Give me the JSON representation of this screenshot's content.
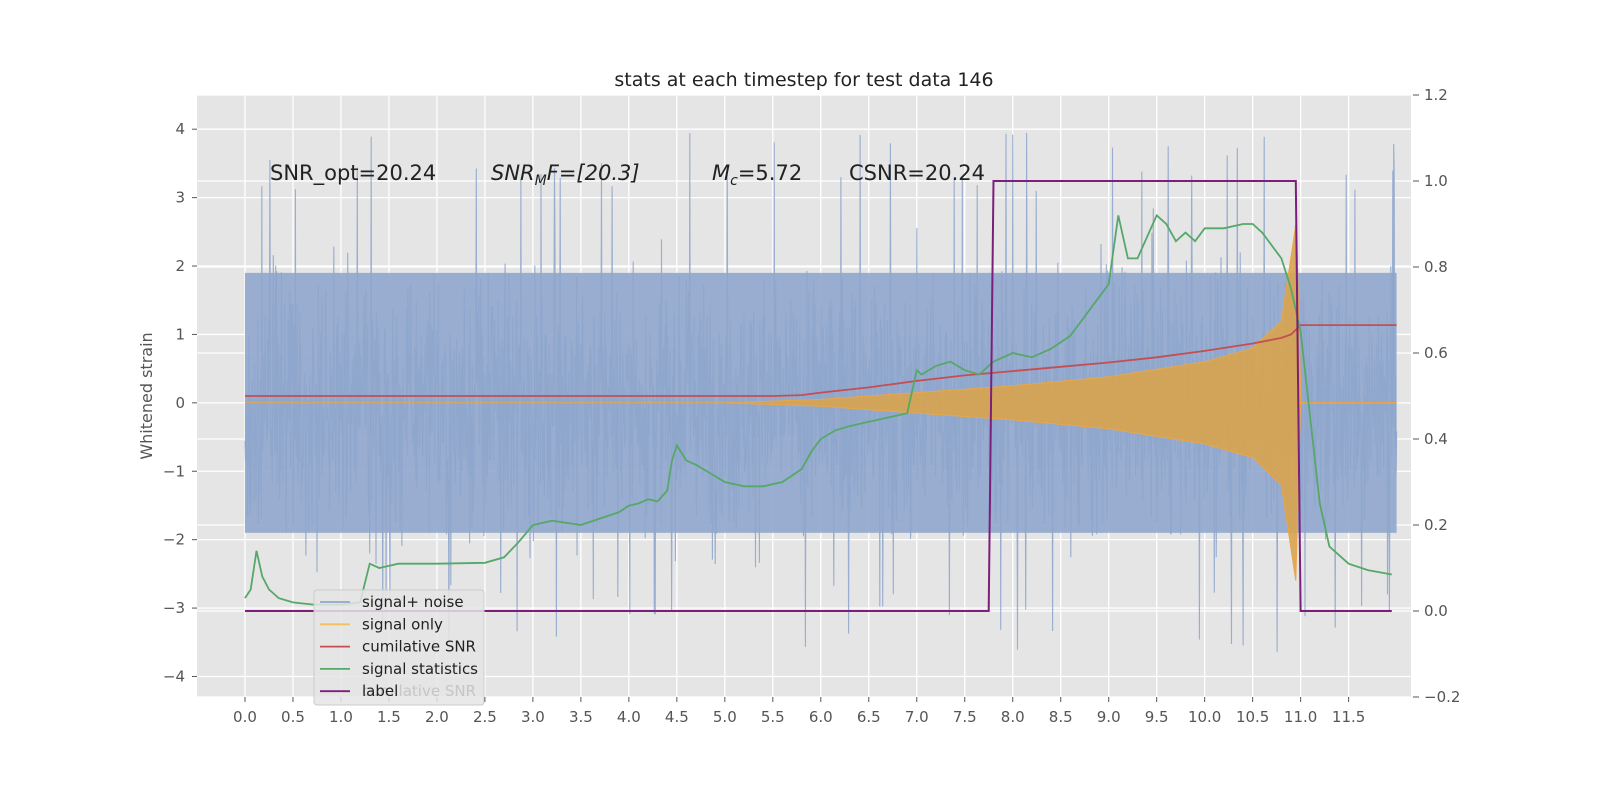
{
  "chart_data": {
    "type": "line",
    "title": "stats at each timestep for test data 146",
    "ylabel": "Whitened strain",
    "ylabel_right": "",
    "xlabel": "",
    "xlim": [
      -0.5,
      12.15
    ],
    "ylim": [
      -4.3,
      4.5
    ],
    "ylim_right": [
      -0.2,
      1.2
    ],
    "grid": true,
    "x_ticks": [
      "0.0",
      "0.5",
      "1.0",
      "1.5",
      "2.0",
      "2.5",
      "3.0",
      "3.5",
      "4.0",
      "4.5",
      "5.0",
      "5.5",
      "6.0",
      "6.5",
      "7.0",
      "7.5",
      "8.0",
      "8.5",
      "9.0",
      "9.5",
      "10.0",
      "10.5",
      "11.0",
      "11.5"
    ],
    "y_ticks": [
      "4",
      "3",
      "2",
      "1",
      "0",
      "−1",
      "−2",
      "−3",
      "−4"
    ],
    "y_ticks_right": [
      "1.2",
      "1.0",
      "0.8",
      "0.6",
      "0.4",
      "0.2",
      "0.0",
      "−0.2"
    ],
    "annotations": {
      "snr_opt": "SNR_opt=20.24",
      "snr_mf_pre": "SNR",
      "snr_mf_sub": "M",
      "snr_mf_post": "F=[20.3]",
      "mc_pre": "M",
      "mc_sub": "c",
      "mc_post": "=5.72",
      "csnr": "CSNR=20.24"
    },
    "legend_placement": "lower-left",
    "series": [
      {
        "name": "signal+ noise",
        "color": "#8fa6cc",
        "axis": "left",
        "x_range": [
          0.0,
          12.0
        ],
        "amplitude_range": [
          -3.7,
          4.1
        ],
        "note_values": "dense noisy trace"
      },
      {
        "name": "signal only",
        "color": "#e8a64a",
        "axis": "left",
        "envelope": {
          "x": [
            0.0,
            5.0,
            6.0,
            7.0,
            8.0,
            9.0,
            10.0,
            10.5,
            10.8,
            10.95,
            11.0,
            12.0
          ],
          "upper": [
            0.0,
            0.0,
            0.05,
            0.15,
            0.25,
            0.38,
            0.6,
            0.8,
            1.2,
            2.6,
            0.0,
            0.0
          ],
          "lower": [
            0.0,
            0.0,
            -0.05,
            -0.15,
            -0.25,
            -0.38,
            -0.6,
            -0.8,
            -1.2,
            -2.6,
            0.0,
            0.0
          ]
        }
      },
      {
        "name": "cumilative SNR",
        "color": "#c44e52",
        "axis": "right",
        "x": [
          0.0,
          5.5,
          5.8,
          6.0,
          6.5,
          7.0,
          7.5,
          8.0,
          8.5,
          9.0,
          9.5,
          10.0,
          10.5,
          10.8,
          10.9,
          11.0,
          12.0
        ],
        "values": [
          0.5,
          0.5,
          0.502,
          0.508,
          0.52,
          0.535,
          0.548,
          0.558,
          0.568,
          0.578,
          0.59,
          0.605,
          0.622,
          0.635,
          0.643,
          0.665,
          0.665
        ]
      },
      {
        "name": "signal statistics",
        "color": "#55a868",
        "axis": "right",
        "x": [
          0.0,
          0.06,
          0.12,
          0.18,
          0.25,
          0.35,
          0.5,
          0.7,
          1.0,
          1.2,
          1.3,
          1.4,
          1.6,
          2.0,
          2.5,
          2.7,
          2.85,
          3.0,
          3.2,
          3.5,
          3.7,
          3.9,
          4.0,
          4.1,
          4.2,
          4.3,
          4.4,
          4.45,
          4.5,
          4.6,
          4.7,
          4.85,
          5.0,
          5.2,
          5.4,
          5.6,
          5.8,
          5.9,
          6.0,
          6.15,
          6.3,
          6.5,
          6.7,
          6.9,
          7.0,
          7.05,
          7.2,
          7.35,
          7.5,
          7.65,
          7.8,
          8.0,
          8.2,
          8.4,
          8.6,
          8.8,
          9.0,
          9.1,
          9.2,
          9.3,
          9.4,
          9.5,
          9.6,
          9.7,
          9.8,
          9.9,
          10.0,
          10.2,
          10.4,
          10.5,
          10.6,
          10.8,
          10.9,
          11.0,
          11.1,
          11.2,
          11.3,
          11.5,
          11.7,
          11.95
        ],
        "values": [
          0.03,
          0.05,
          0.14,
          0.08,
          0.05,
          0.03,
          0.02,
          0.015,
          0.015,
          0.02,
          0.11,
          0.1,
          0.11,
          0.11,
          0.112,
          0.125,
          0.16,
          0.2,
          0.21,
          0.2,
          0.215,
          0.23,
          0.245,
          0.25,
          0.26,
          0.255,
          0.28,
          0.35,
          0.385,
          0.35,
          0.34,
          0.32,
          0.3,
          0.29,
          0.29,
          0.3,
          0.33,
          0.37,
          0.4,
          0.42,
          0.43,
          0.44,
          0.45,
          0.46,
          0.56,
          0.55,
          0.57,
          0.58,
          0.56,
          0.55,
          0.58,
          0.6,
          0.59,
          0.61,
          0.64,
          0.7,
          0.76,
          0.92,
          0.82,
          0.82,
          0.87,
          0.92,
          0.9,
          0.86,
          0.88,
          0.86,
          0.89,
          0.89,
          0.9,
          0.9,
          0.88,
          0.82,
          0.75,
          0.65,
          0.45,
          0.25,
          0.15,
          0.11,
          0.095,
          0.085
        ]
      },
      {
        "name": "label",
        "color": "#7b1f7a",
        "axis": "right",
        "x": [
          0.0,
          7.75,
          7.8,
          10.95,
          11.0,
          11.95
        ],
        "values": [
          0.0,
          0.0,
          1.0,
          1.0,
          0.0,
          0.0
        ]
      }
    ]
  },
  "legend_underlay_text": "cumilative SNR"
}
